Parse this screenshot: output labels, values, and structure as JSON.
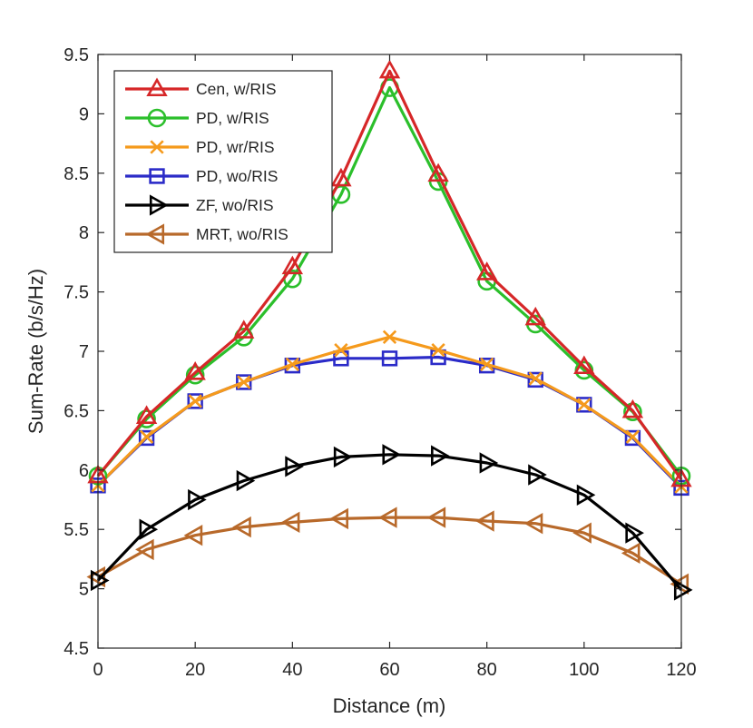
{
  "chart_data": {
    "type": "line",
    "title": "",
    "xlabel": "Distance (m)",
    "ylabel": "Sum-Rate (b/s/Hz)",
    "xlim": [
      0,
      120
    ],
    "ylim": [
      4.5,
      9.5
    ],
    "xticks": [
      0,
      20,
      40,
      60,
      80,
      100,
      120
    ],
    "yticks": [
      4.5,
      5,
      5.5,
      6,
      6.5,
      7,
      7.5,
      8,
      8.5,
      9,
      9.5
    ],
    "xtick_labels": [
      "0",
      "20",
      "40",
      "60",
      "80",
      "100",
      "120"
    ],
    "ytick_labels": [
      "4.5",
      "5",
      "5.5",
      "6",
      "6.5",
      "7",
      "7.5",
      "8",
      "8.5",
      "9",
      "9.5"
    ],
    "grid": false,
    "legend_position": "top-left",
    "x": [
      0,
      10,
      20,
      30,
      40,
      50,
      60,
      70,
      80,
      90,
      100,
      110,
      120
    ],
    "series": [
      {
        "name": "Cen, w/RIS",
        "color": "#d62728",
        "marker": "triangle-up",
        "values": [
          5.95,
          6.45,
          6.82,
          7.17,
          7.71,
          8.45,
          9.36,
          8.49,
          7.66,
          7.28,
          6.87,
          6.5,
          5.92
        ]
      },
      {
        "name": "PD, w/RIS",
        "color": "#2bbf2b",
        "marker": "circle",
        "values": [
          5.95,
          6.43,
          6.8,
          7.12,
          7.61,
          8.32,
          9.22,
          8.43,
          7.59,
          7.23,
          6.84,
          6.49,
          5.95
        ]
      },
      {
        "name": "PD, wr/RIS",
        "color": "#f59a1c",
        "marker": "x",
        "values": [
          5.87,
          6.28,
          6.58,
          6.74,
          6.89,
          7.01,
          7.12,
          7.01,
          6.89,
          6.77,
          6.55,
          6.28,
          5.86
        ]
      },
      {
        "name": "PD, wo/RIS",
        "color": "#2b2bc8",
        "marker": "square",
        "values": [
          5.87,
          6.27,
          6.58,
          6.74,
          6.88,
          6.94,
          6.94,
          6.95,
          6.88,
          6.76,
          6.55,
          6.27,
          5.85
        ]
      },
      {
        "name": "ZF, wo/RIS",
        "color": "#000000",
        "marker": "triangle-right",
        "values": [
          5.07,
          5.5,
          5.75,
          5.91,
          6.03,
          6.11,
          6.13,
          6.12,
          6.06,
          5.96,
          5.79,
          5.47,
          4.99
        ]
      },
      {
        "name": "MRT, wo/RIS",
        "color": "#b8692a",
        "marker": "triangle-left",
        "values": [
          5.1,
          5.33,
          5.45,
          5.52,
          5.56,
          5.59,
          5.6,
          5.6,
          5.57,
          5.55,
          5.47,
          5.3,
          5.04
        ]
      }
    ]
  }
}
